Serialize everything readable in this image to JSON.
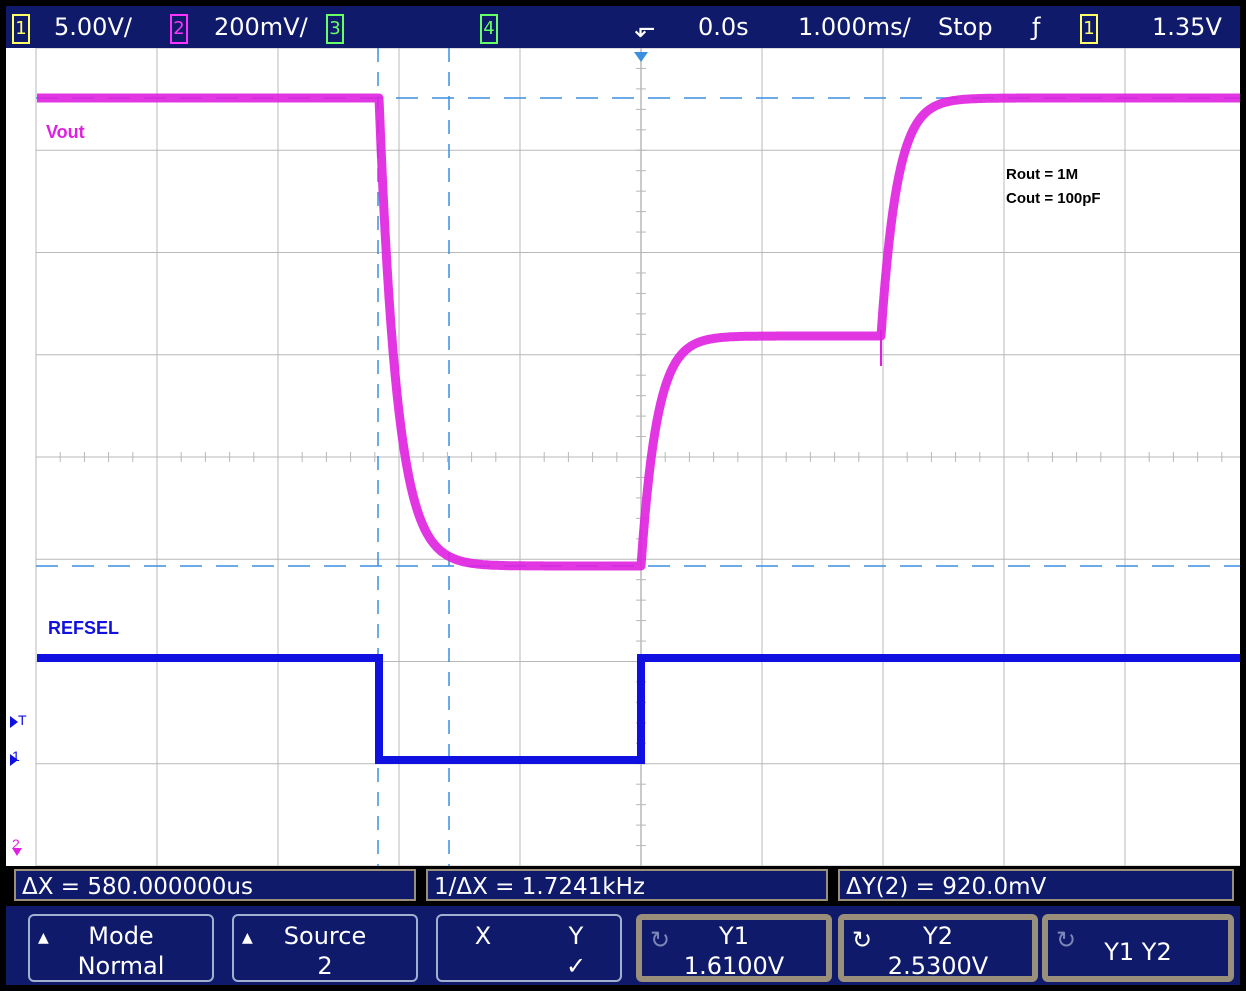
{
  "top_bar": {
    "ch1": {
      "num": "1",
      "scale": "5.00V/",
      "color": "#ffff66"
    },
    "ch2": {
      "num": "2",
      "scale": "200mV/",
      "color": "#ff33ff"
    },
    "ch3": {
      "num": "3",
      "color": "#66ff66"
    },
    "ch4": {
      "num": "4",
      "color": "#66ff66"
    },
    "delay": "0.0s",
    "timebase": "1.000ms/",
    "run_state": "Stop",
    "trigger_slope": "ƒ",
    "trigger_source": "1",
    "trigger_level": "1.35V"
  },
  "traces": {
    "vout_label": "Vout",
    "vout_color": "#e020e0",
    "refsel_label": "REFSEL",
    "refsel_color": "#1010e0"
  },
  "annotation": {
    "line1": "Rout = 1M",
    "line2": "Cout = 100pF"
  },
  "markers": {
    "trigger_marker": "T",
    "ch1_ground": "1",
    "ch2_ground": "2"
  },
  "measurements": {
    "delta_x": "ΔX = 580.000000us",
    "inv_delta_x": "1/ΔX = 1.7241kHz",
    "delta_y": "ΔY(2) = 920.0mV"
  },
  "softkeys": [
    {
      "line1": "Mode",
      "line2": "Normal"
    },
    {
      "line1": "Source",
      "line2": "2"
    },
    {
      "line1": "X",
      "line2": "Y"
    },
    {
      "line1": "Y1",
      "line2": "1.6100V"
    },
    {
      "line1": "Y2",
      "line2": "2.5300V"
    },
    {
      "line1": "Y1 Y2",
      "line2": ""
    }
  ],
  "colors": {
    "bar_bg": "#0f1a6b",
    "grid": "#b8b8b8",
    "cursor": "#3b8fe0",
    "active_border": "#9a8f7a"
  }
}
